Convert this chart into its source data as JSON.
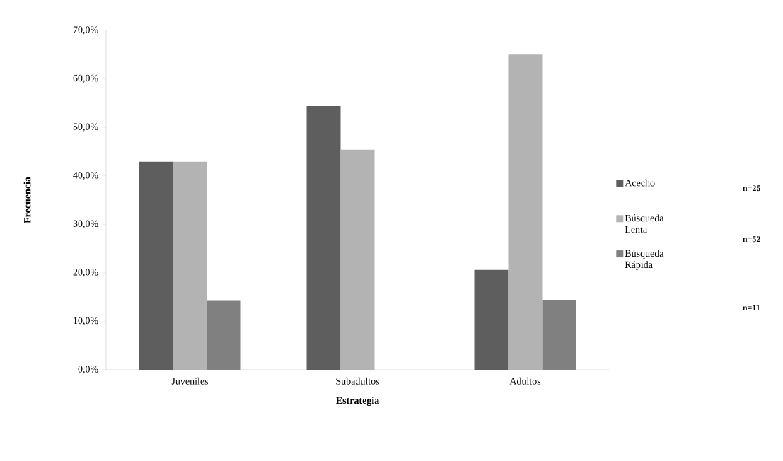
{
  "chart_data": {
    "type": "bar",
    "xlabel": "Estrategia",
    "ylabel": "Frecuencia",
    "categories": [
      "Juveniles",
      "Subadultos",
      "Adultos"
    ],
    "series": [
      {
        "name": "Acecho",
        "color": "#5e5e5e",
        "values": [
          42.9,
          54.4,
          20.6
        ]
      },
      {
        "name": "Búsqueda Lenta",
        "color": "#b3b3b3",
        "values": [
          42.9,
          45.4,
          65.0
        ]
      },
      {
        "name": "Búsqueda Rápida",
        "color": "#808080",
        "values": [
          14.2,
          0,
          14.3
        ]
      }
    ],
    "ylim": [
      0,
      70
    ],
    "yticks": [
      {
        "value": 0,
        "label": "0,0%"
      },
      {
        "value": 10,
        "label": "10,0%"
      },
      {
        "value": 20,
        "label": "20,0%"
      },
      {
        "value": 30,
        "label": "30,0%"
      },
      {
        "value": 40,
        "label": "40,0%"
      },
      {
        "value": 50,
        "label": "50,0%"
      },
      {
        "value": 60,
        "label": "60,0%"
      },
      {
        "value": 70,
        "label": "70,0%"
      }
    ],
    "legend": "right",
    "grid": false,
    "annotations": [
      "n=25",
      "n=52",
      "n=11"
    ]
  }
}
